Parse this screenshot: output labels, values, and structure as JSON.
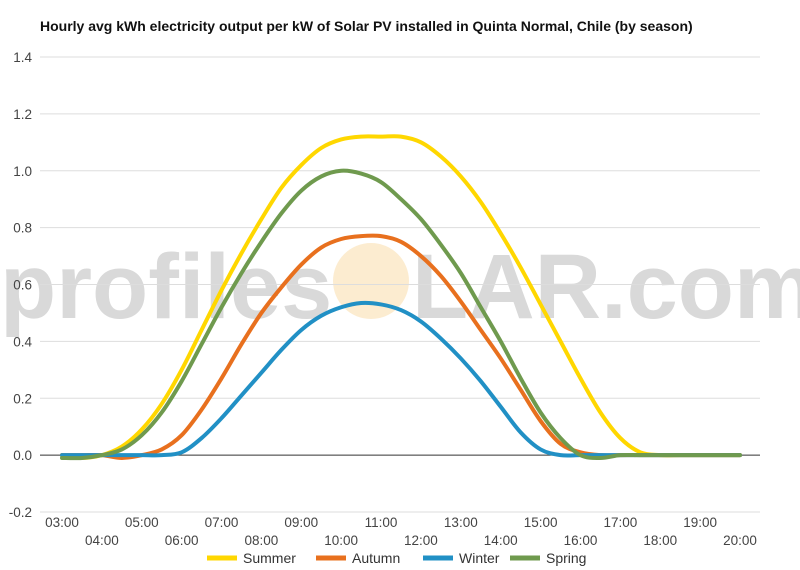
{
  "chart_data": {
    "type": "line",
    "title": "Hourly avg kWh electricity output per kW of Solar PV installed in Quinta Normal, Chile (by season)",
    "xlabel": "",
    "ylabel": "",
    "ylim": [
      -0.2,
      1.4
    ],
    "yticks": [
      "-0.2",
      "0.0",
      "0.2",
      "0.4",
      "0.6",
      "0.8",
      "1.0",
      "1.2",
      "1.4"
    ],
    "x_tick_labels": [
      "03:00",
      "04:00",
      "05:00",
      "06:00",
      "07:00",
      "08:00",
      "09:00",
      "10:00",
      "11:00",
      "12:00",
      "13:00",
      "14:00",
      "15:00",
      "16:00",
      "17:00",
      "18:00",
      "19:00",
      "20:00"
    ],
    "x_hours": [
      3,
      3.5,
      4,
      4.5,
      5,
      5.5,
      6,
      6.5,
      7,
      7.5,
      8,
      8.5,
      9,
      9.5,
      10,
      10.5,
      11,
      11.5,
      12,
      12.5,
      13,
      13.5,
      14,
      14.5,
      15,
      15.5,
      16,
      16.5,
      17,
      17.5,
      18,
      18.5,
      19,
      19.5,
      20
    ],
    "series": [
      {
        "name": "Summer",
        "color": "#FFD700",
        "values": [
          0,
          -0.01,
          0,
          0.03,
          0.09,
          0.18,
          0.3,
          0.44,
          0.58,
          0.71,
          0.83,
          0.94,
          1.02,
          1.08,
          1.11,
          1.12,
          1.12,
          1.12,
          1.1,
          1.05,
          0.98,
          0.89,
          0.78,
          0.66,
          0.53,
          0.4,
          0.27,
          0.15,
          0.06,
          0.01,
          0,
          0,
          0,
          0,
          0
        ]
      },
      {
        "name": "Autumn",
        "color": "#E8701E",
        "values": [
          0,
          0,
          0,
          -0.01,
          0,
          0.02,
          0.07,
          0.16,
          0.27,
          0.39,
          0.5,
          0.59,
          0.67,
          0.73,
          0.76,
          0.77,
          0.77,
          0.75,
          0.7,
          0.63,
          0.54,
          0.44,
          0.34,
          0.23,
          0.12,
          0.04,
          0.01,
          0,
          0,
          0,
          0,
          0,
          0,
          0,
          0
        ]
      },
      {
        "name": "Winter",
        "color": "#2190C5",
        "values": [
          0,
          0,
          0,
          0,
          0,
          0,
          0.01,
          0.06,
          0.13,
          0.21,
          0.29,
          0.37,
          0.44,
          0.49,
          0.52,
          0.535,
          0.53,
          0.51,
          0.47,
          0.41,
          0.34,
          0.26,
          0.17,
          0.08,
          0.02,
          0,
          0,
          0,
          0,
          0,
          0,
          0,
          0,
          0,
          0
        ]
      },
      {
        "name": "Spring",
        "color": "#6F9A4E",
        "values": [
          -0.01,
          -0.01,
          0,
          0.02,
          0.07,
          0.15,
          0.26,
          0.39,
          0.52,
          0.64,
          0.75,
          0.85,
          0.93,
          0.98,
          1.0,
          0.99,
          0.96,
          0.9,
          0.83,
          0.74,
          0.64,
          0.52,
          0.4,
          0.27,
          0.15,
          0.06,
          0.0,
          -0.01,
          0,
          0,
          0,
          0,
          0,
          0,
          0
        ]
      }
    ],
    "legend_position": "bottom"
  },
  "watermark": {
    "left": "profiles",
    "right": "LAR.com"
  }
}
